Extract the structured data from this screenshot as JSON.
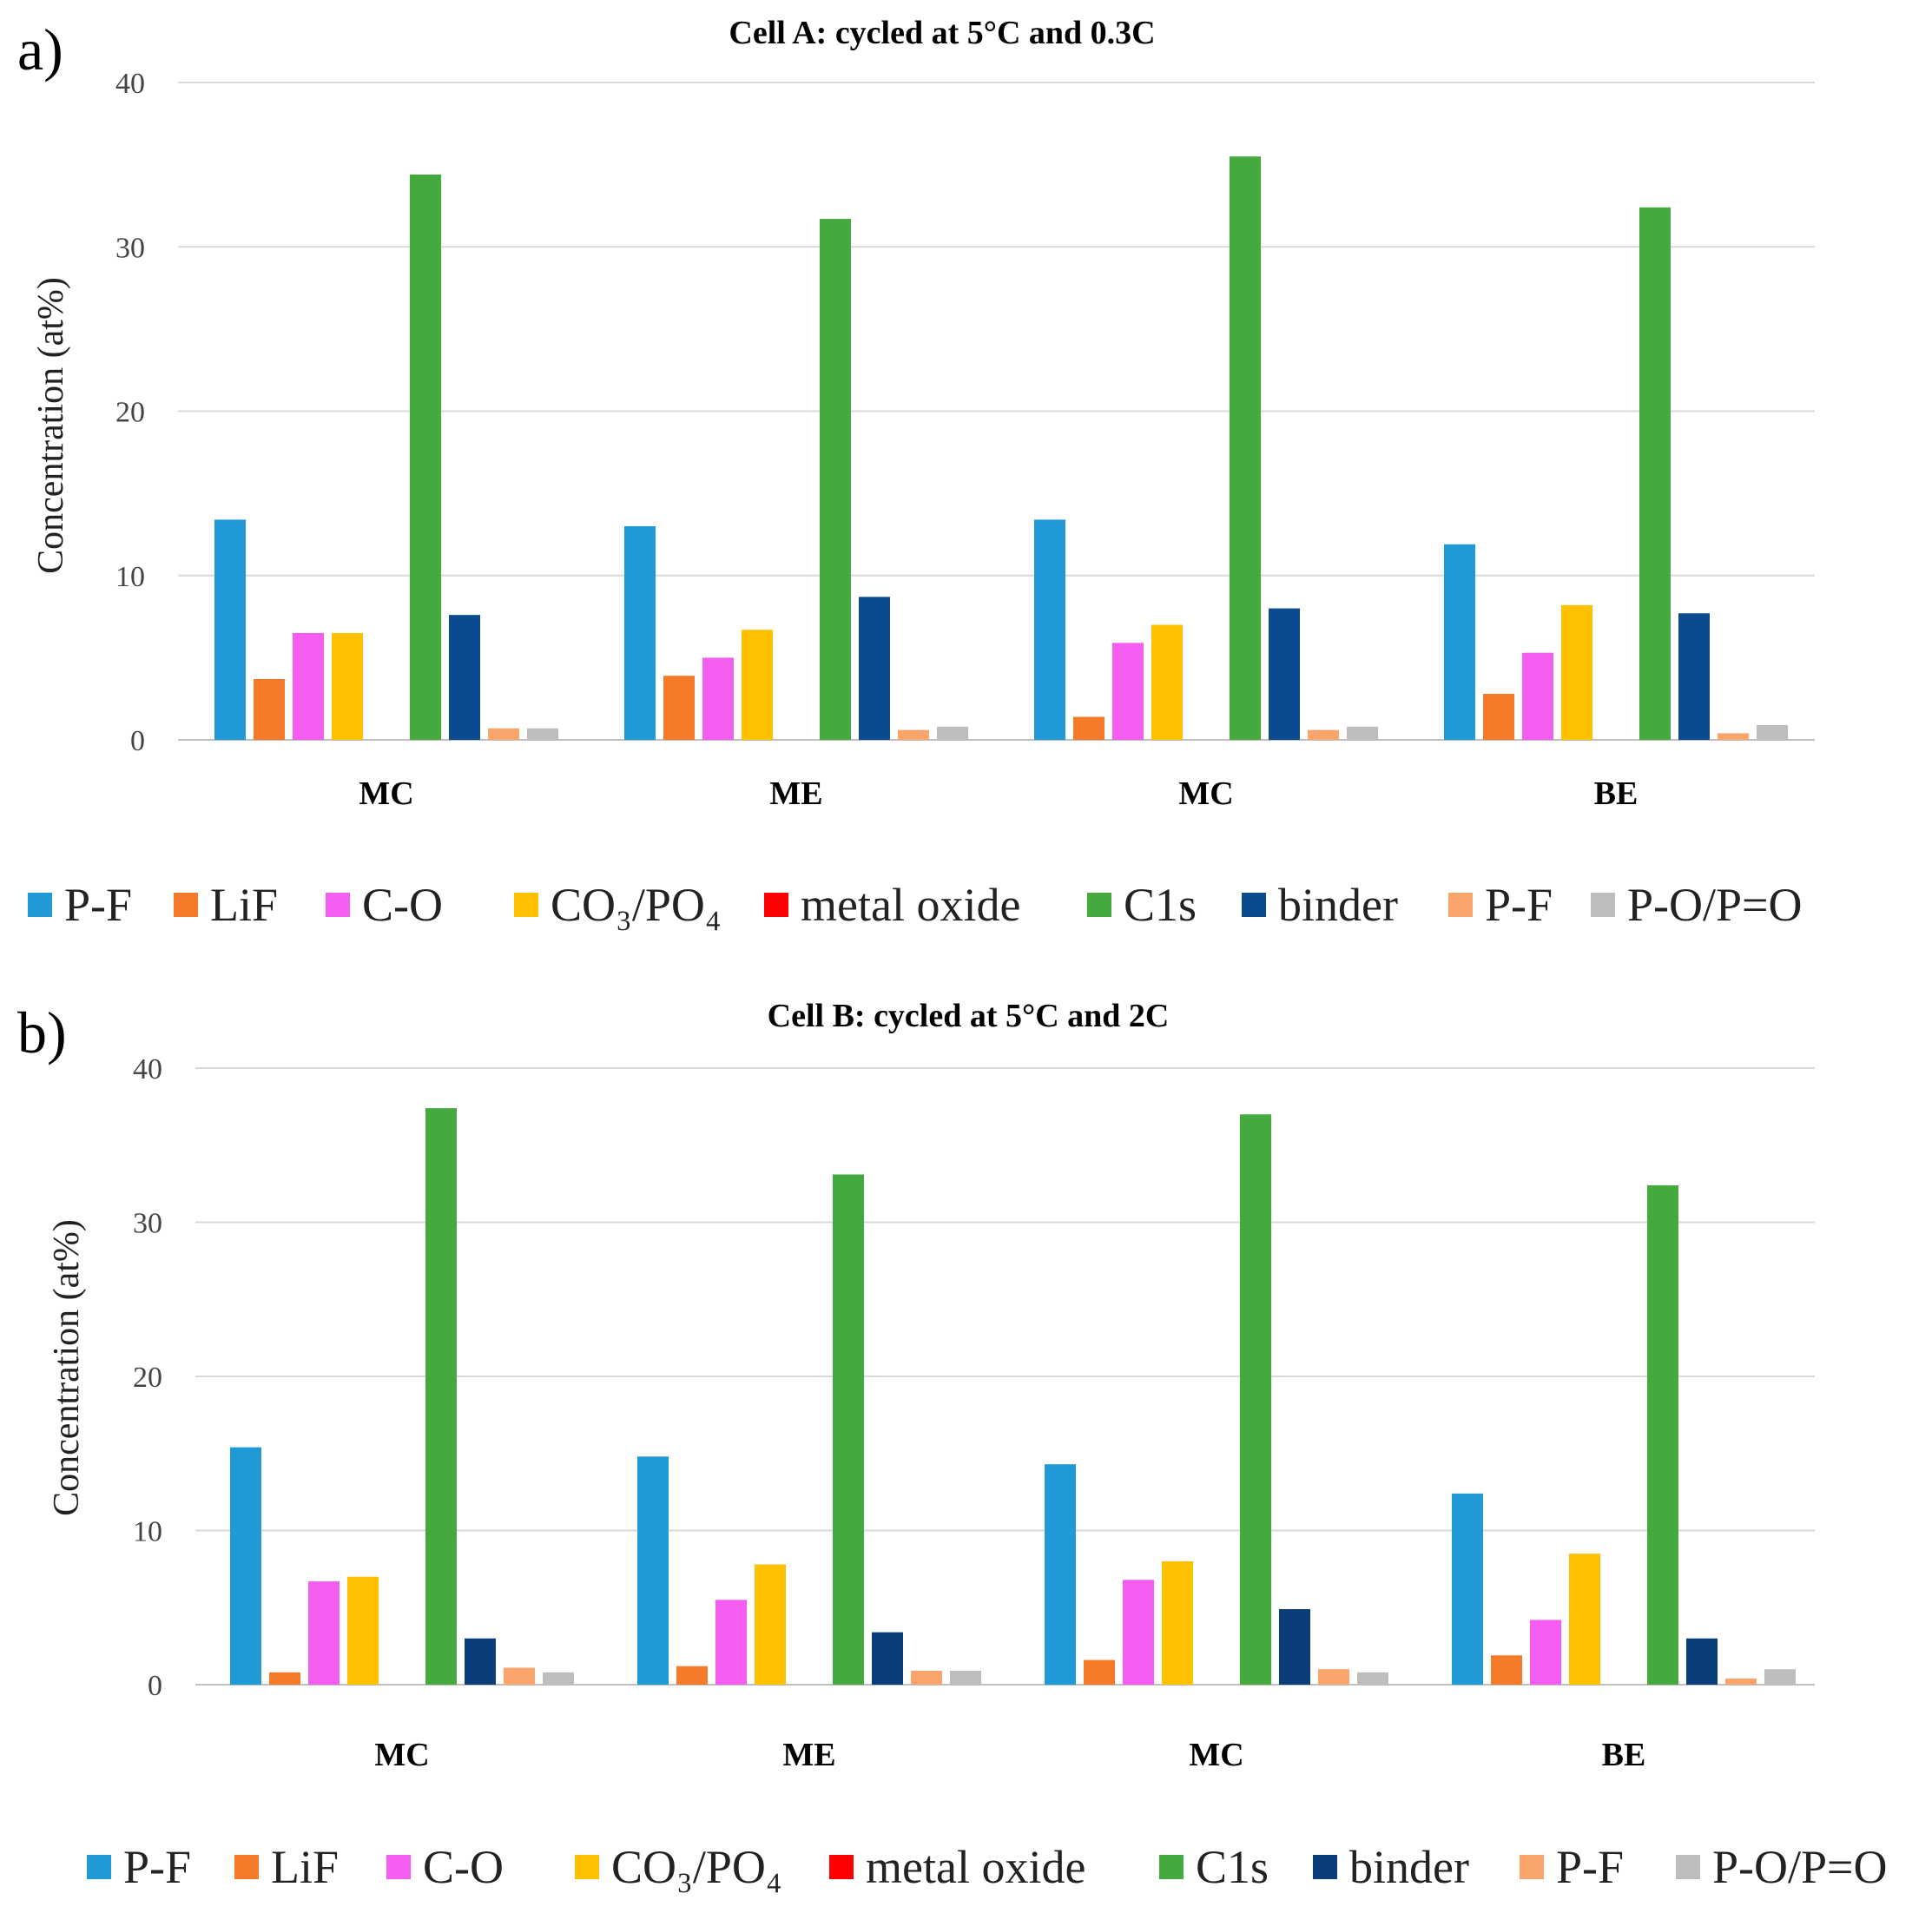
{
  "chart_data": [
    {
      "type": "bar",
      "panel_label": "a)",
      "title": "Cell A: cycled at 5°C and 0.3C",
      "xlabel": "",
      "ylabel": "Concentration (at%)",
      "ylim": [
        0,
        40
      ],
      "yticks": [
        0,
        10,
        20,
        30,
        40
      ],
      "grid": true,
      "legend_position": "bottom",
      "categories": [
        "MC",
        "ME",
        "MC",
        "BE"
      ],
      "series": [
        {
          "name": "P-F",
          "color": "#1f9ad6",
          "values": [
            13.4,
            13.0,
            13.4,
            11.9
          ]
        },
        {
          "name": "LiF",
          "color": "#f47b2a",
          "values": [
            3.7,
            3.9,
            1.4,
            2.8
          ]
        },
        {
          "name": "C-O",
          "color": "#f55cf0",
          "values": [
            6.5,
            5.0,
            5.9,
            5.3
          ]
        },
        {
          "name": "CO₃/PO₄",
          "color": "#ffc000",
          "values": [
            6.5,
            6.7,
            7.0,
            8.2
          ]
        },
        {
          "name": "metal oxide",
          "color": "#ff0000",
          "values": [
            0,
            0,
            0,
            0
          ]
        },
        {
          "name": "C1s",
          "color": "#44aa3d",
          "values": [
            34.4,
            31.7,
            35.5,
            32.4
          ]
        },
        {
          "name": "binder",
          "color": "#0a4a8f",
          "values": [
            7.6,
            8.7,
            8.0,
            7.7
          ]
        },
        {
          "name": "P-F",
          "color": "#f9a46a",
          "values": [
            0.7,
            0.6,
            0.6,
            0.4
          ]
        },
        {
          "name": "P-O/P=O",
          "color": "#bdbdbd",
          "values": [
            0.7,
            0.8,
            0.8,
            0.9
          ]
        }
      ]
    },
    {
      "type": "bar",
      "panel_label": "b)",
      "title": "Cell B: cycled at 5°C and 2C",
      "xlabel": "",
      "ylabel": "Concentration (at%)",
      "ylim": [
        0,
        40
      ],
      "yticks": [
        0,
        10,
        20,
        30,
        40
      ],
      "grid": true,
      "legend_position": "bottom",
      "categories": [
        "MC",
        "ME",
        "MC",
        "BE"
      ],
      "series": [
        {
          "name": "P-F",
          "color": "#1f9ad6",
          "values": [
            15.4,
            14.8,
            14.3,
            12.4
          ]
        },
        {
          "name": "LiF",
          "color": "#f47b2a",
          "values": [
            0.8,
            1.2,
            1.6,
            1.9
          ]
        },
        {
          "name": "C-O",
          "color": "#f55cf0",
          "values": [
            6.7,
            5.5,
            6.8,
            4.2
          ]
        },
        {
          "name": "CO₃/PO₄",
          "color": "#ffc000",
          "values": [
            7.0,
            7.8,
            8.0,
            8.5
          ]
        },
        {
          "name": "metal oxide",
          "color": "#ff0000",
          "values": [
            0,
            0,
            0,
            0
          ]
        },
        {
          "name": "C1s",
          "color": "#44aa3d",
          "values": [
            37.4,
            33.1,
            37.0,
            32.4
          ]
        },
        {
          "name": "binder",
          "color": "#0a3d7a",
          "values": [
            3.0,
            3.4,
            4.9,
            3.0
          ]
        },
        {
          "name": "P-F",
          "color": "#f9a46a",
          "values": [
            1.1,
            0.9,
            1.0,
            0.4
          ]
        },
        {
          "name": "P-O/P=O",
          "color": "#bdbdbd",
          "values": [
            0.8,
            0.9,
            0.8,
            1.0
          ]
        }
      ]
    }
  ]
}
